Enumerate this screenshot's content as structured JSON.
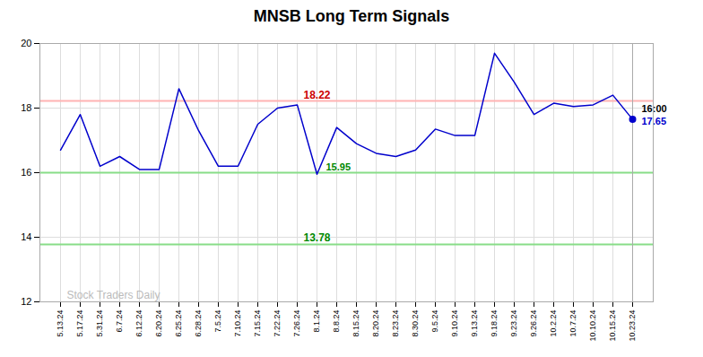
{
  "chart_data": {
    "type": "line",
    "title": "MNSB Long Term Signals",
    "categories": [
      "5.13.24",
      "5.17.24",
      "5.31.24",
      "6.7.24",
      "6.12.24",
      "6.20.24",
      "6.25.24",
      "6.28.24",
      "7.5.24",
      "7.10.24",
      "7.15.24",
      "7.22.24",
      "7.26.24",
      "8.1.24",
      "8.8.24",
      "8.15.24",
      "8.20.24",
      "8.23.24",
      "8.30.24",
      "9.5.24",
      "9.10.24",
      "9.13.24",
      "9.18.24",
      "9.23.24",
      "9.26.24",
      "10.2.24",
      "10.7.24",
      "10.10.24",
      "10.15.24",
      "10.23.24"
    ],
    "values": [
      16.7,
      17.8,
      16.2,
      16.5,
      16.1,
      16.1,
      18.6,
      17.3,
      16.2,
      16.2,
      17.5,
      18.0,
      18.1,
      15.95,
      17.4,
      16.9,
      16.6,
      16.5,
      16.7,
      17.35,
      17.15,
      17.15,
      19.7,
      18.8,
      17.8,
      18.15,
      18.05,
      18.1,
      18.4,
      17.65
    ],
    "color": "#0000cc",
    "ylim": [
      12,
      20
    ],
    "yticks": [
      12,
      14,
      16,
      18,
      20
    ],
    "grid": true,
    "hlines": [
      {
        "value": 18.22,
        "color": "#ffb3b3"
      },
      {
        "value": 16.0,
        "color": "#88dd88"
      },
      {
        "value": 13.78,
        "color": "#88dd88"
      }
    ],
    "annotations": [
      {
        "text": "18.22",
        "category": "8.1.24",
        "value": 18.22,
        "color": "#cc0000"
      },
      {
        "text": "13.78",
        "category": "8.1.24",
        "value": 13.78,
        "color": "#008800"
      },
      {
        "text": "15.95",
        "category": "8.1.24",
        "value": 15.95,
        "color": "#008800"
      },
      {
        "text": "16:00",
        "category": "10.23.24",
        "value": 17.65,
        "color": "#000000"
      },
      {
        "text": "17.65",
        "category": "10.23.24",
        "value": 17.65,
        "color": "#0000cc"
      }
    ],
    "watermark": {
      "text": "Stock Traders Daily",
      "color": "#bbbbbb"
    }
  }
}
